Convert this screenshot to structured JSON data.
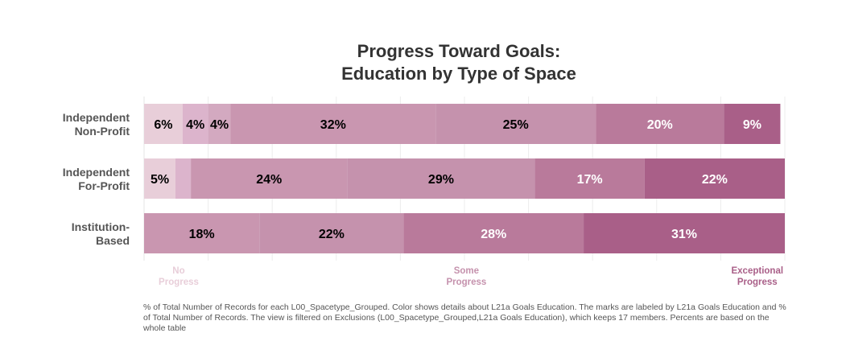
{
  "title_line1": "Progress Toward Goals:",
  "title_line2": "Education by Type of Space",
  "footnote": "% of Total Number of Records for each L00_Spacetype_Grouped. Color shows details about L21a Goals Education. The marks are labeled by L21a Goals Education and % of Total Number of Records. The view is filtered on Exclusions (L00_Spacetype_Grouped,L21a Goals Education), which keeps 17 members. Percents are based on the whole table",
  "chart_data": {
    "type": "bar",
    "orientation": "horizontal",
    "stacked": true,
    "grid": true,
    "legend": "bottom axis labels",
    "level_colors": [
      "#e8ced9",
      "#dcb4cc",
      "#d3a9c0",
      "#c996b0",
      "#c592ad",
      "#b97a9b",
      "#a95f88"
    ],
    "level_label_colors": [
      "#000000",
      "#000000",
      "#000000",
      "#000000",
      "#000000",
      "#ffffff",
      "#ffffff"
    ],
    "categories": [
      {
        "name_lines": [
          "Independent",
          "Non-Profit"
        ],
        "segments": [
          {
            "level": 0,
            "value": 6,
            "label": "6%"
          },
          {
            "level": 1,
            "value": 4,
            "label": "4%"
          },
          {
            "level": 2,
            "value": 3.5,
            "label": "4%"
          },
          {
            "level": 3,
            "value": 32,
            "label": "32%"
          },
          {
            "level": 4,
            "value": 25,
            "label": "25%"
          },
          {
            "level": 5,
            "value": 20,
            "label": "20%"
          },
          {
            "level": 6,
            "value": 8.8,
            "label": "9%"
          }
        ]
      },
      {
        "name_lines": [
          "Independent",
          "For-Profit"
        ],
        "segments": [
          {
            "level": 0,
            "value": 4.9,
            "label": "5%"
          },
          {
            "level": 1,
            "value": 2.4,
            "label": ""
          },
          {
            "level": 3,
            "value": 24.4,
            "label": "24%"
          },
          {
            "level": 4,
            "value": 29.3,
            "label": "29%"
          },
          {
            "level": 5,
            "value": 17.1,
            "label": "17%"
          },
          {
            "level": 6,
            "value": 21.9,
            "label": "22%"
          }
        ]
      },
      {
        "name_lines": [
          "Institution-",
          "Based"
        ],
        "segments": [
          {
            "level": 3,
            "value": 18,
            "label": "18%"
          },
          {
            "level": 4,
            "value": 22.5,
            "label": "22%"
          },
          {
            "level": 5,
            "value": 28.1,
            "label": "28%"
          },
          {
            "level": 6,
            "value": 31.4,
            "label": "31%"
          }
        ]
      }
    ],
    "axis_labels": [
      {
        "lines": [
          "No",
          "Progress"
        ],
        "at": 5.4,
        "color": "#e8ced9"
      },
      {
        "lines": [
          "Some",
          "Progress"
        ],
        "at": 50.3,
        "color": "#c592ad"
      },
      {
        "lines": [
          "Exceptional",
          "Progress"
        ],
        "at": 95.7,
        "color": "#a95f88"
      }
    ],
    "xlim": [
      0,
      100
    ],
    "gridlines_at": [
      10,
      20,
      30,
      40,
      50,
      60,
      70,
      80,
      90
    ]
  }
}
